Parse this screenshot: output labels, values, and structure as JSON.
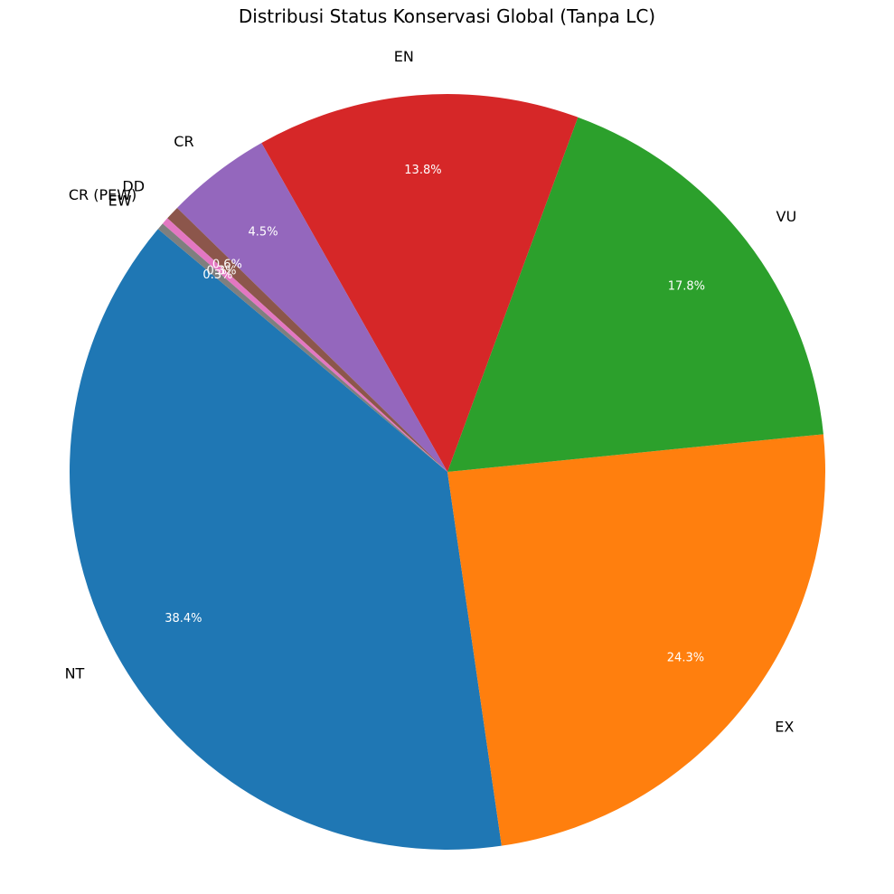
{
  "chart_data": {
    "type": "pie",
    "title": "Distribusi Status Konservasi Global (Tanpa LC)",
    "start_angle_deg": 140,
    "direction": "counterclockwise",
    "slices": [
      {
        "label": "NT",
        "value": 38.4,
        "pct_label": "38.4%",
        "color": "#1f77b4"
      },
      {
        "label": "EX",
        "value": 24.3,
        "pct_label": "24.3%",
        "color": "#ff7f0e"
      },
      {
        "label": "VU",
        "value": 17.8,
        "pct_label": "17.8%",
        "color": "#2ca02c"
      },
      {
        "label": "EN",
        "value": 13.8,
        "pct_label": "13.8%",
        "color": "#d62728"
      },
      {
        "label": "CR",
        "value": 4.5,
        "pct_label": "4.5%",
        "color": "#9467bd"
      },
      {
        "label": "DD",
        "value": 0.6,
        "pct_label": "0.6%",
        "color": "#8c564b"
      },
      {
        "label": "CR (PEW)",
        "value": 0.3,
        "pct_label": "0.3%",
        "color": "#e377c2"
      },
      {
        "label": "EW",
        "value": 0.3,
        "pct_label": "0.3%",
        "color": "#7f7f7f"
      }
    ]
  }
}
